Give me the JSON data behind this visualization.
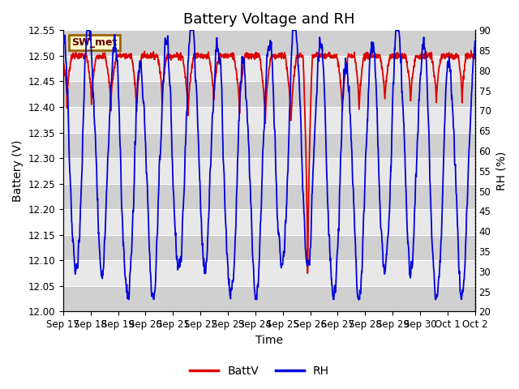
{
  "title": "Battery Voltage and RH",
  "xlabel": "Time",
  "ylabel_left": "Battery (V)",
  "ylabel_right": "RH (%)",
  "ylim_left": [
    12.0,
    12.55
  ],
  "ylim_right": [
    20,
    90
  ],
  "yticks_left": [
    12.0,
    12.05,
    12.1,
    12.15,
    12.2,
    12.25,
    12.3,
    12.35,
    12.4,
    12.45,
    12.5,
    12.55
  ],
  "yticks_right": [
    20,
    25,
    30,
    35,
    40,
    45,
    50,
    55,
    60,
    65,
    70,
    75,
    80,
    85,
    90
  ],
  "x_tick_labels": [
    "Sep 17",
    "Sep 18",
    "Sep 19",
    "Sep 20",
    "Sep 21",
    "Sep 22",
    "Sep 23",
    "Sep 24",
    "Sep 25",
    "Sep 26",
    "Sep 27",
    "Sep 28",
    "Sep 29",
    "Sep 30",
    "Oct 1",
    "Oct 2"
  ],
  "color_battv": "#dd0000",
  "color_rh": "#0000dd",
  "legend_label_battv": "BattV",
  "legend_label_rh": "RH",
  "station_label": "SW_met",
  "station_label_bg": "#ffffcc",
  "station_label_border": "#996600",
  "background_color": "#ffffff",
  "plot_bg_light": "#e8e8e8",
  "plot_bg_dark": "#d0d0d0",
  "title_fontsize": 13,
  "axis_fontsize": 10,
  "tick_fontsize": 8.5
}
